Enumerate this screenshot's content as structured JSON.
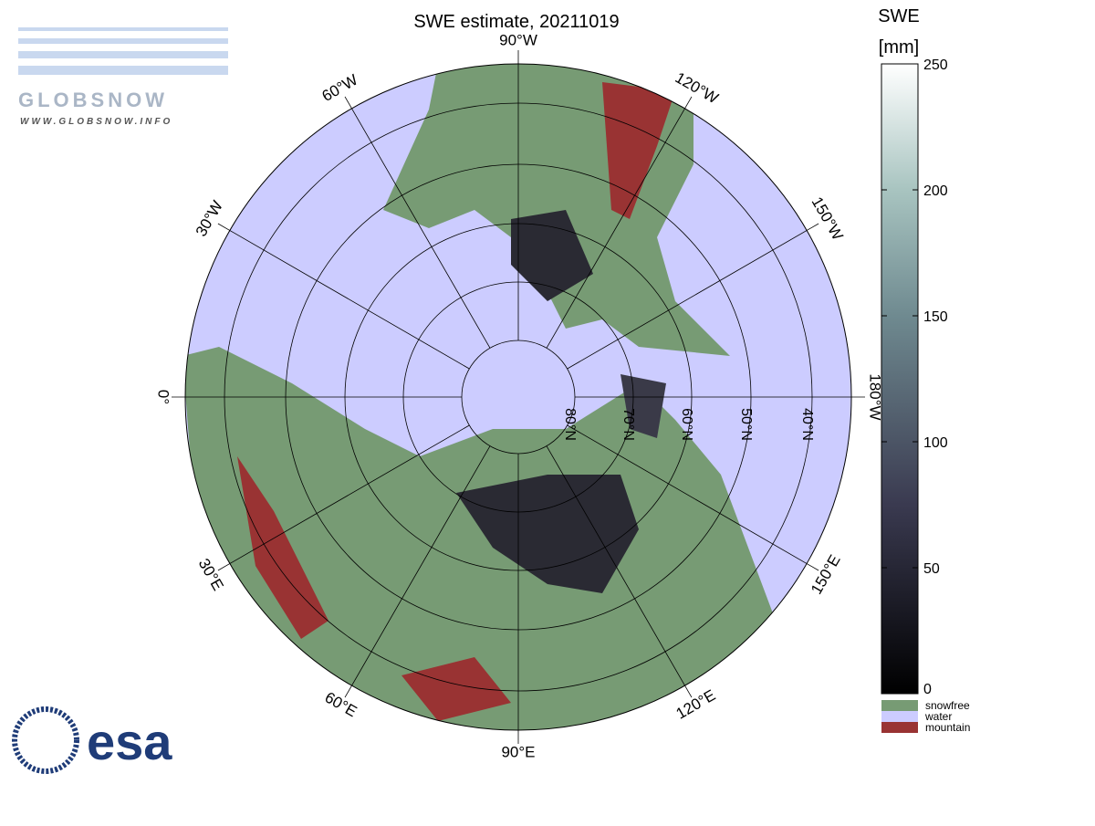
{
  "header": {
    "title": "SWE estimate, 20211019"
  },
  "logos": {
    "globsnow": "GLOBSNOW",
    "globsnow_url": "WWW.GLOBSNOW.INFO",
    "esa": "esa"
  },
  "map": {
    "lon_labels": [
      "0°",
      "30°E",
      "60°E",
      "90°E",
      "120°E",
      "150°E",
      "180°W",
      "150°W",
      "120°W",
      "90°W",
      "60°W",
      "30°W"
    ],
    "lat_labels": [
      "80°N",
      "70°N",
      "60°N",
      "50°N",
      "40°N"
    ]
  },
  "colorbar": {
    "title": "SWE",
    "unit": "[mm]",
    "lim": [
      0,
      250
    ],
    "ticks": [
      0,
      50,
      100,
      150,
      200,
      250
    ],
    "categories": [
      {
        "name": "snowfree",
        "color": "#779b74"
      },
      {
        "name": "water",
        "color": "#ccccff"
      },
      {
        "name": "mountain",
        "color": "#993333"
      }
    ]
  }
}
